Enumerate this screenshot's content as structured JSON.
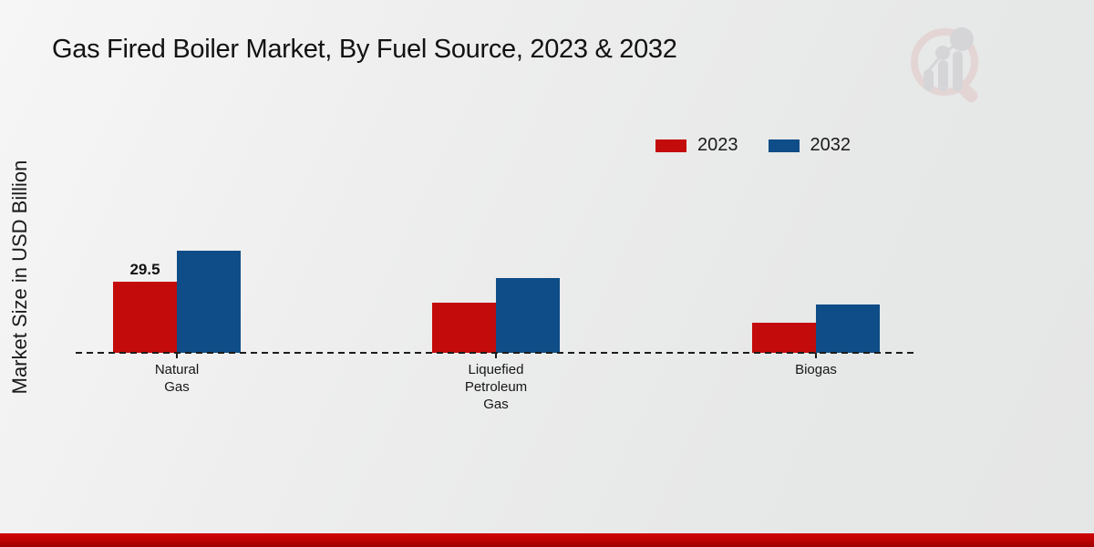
{
  "page": {
    "title": "Gas Fired Boiler Market, By Fuel Source, 2023 & 2032",
    "watermark_name": "market-research-future-logo"
  },
  "colors": {
    "series_2023": "#c40b0b",
    "series_2032": "#0e4d87",
    "text": "#1a1a1a",
    "baseline": "#1c1c1c",
    "bottom_strip": "#c00303",
    "background": "#ebebeb",
    "watermark_ring": "#e2c6c6",
    "watermark_bars": "#c7c7cc"
  },
  "chart_data": {
    "type": "bar",
    "title": "Gas Fired Boiler Market, By Fuel Source, 2023 & 2032",
    "xlabel": "",
    "ylabel": "Market Size in USD Billion",
    "ylim": [
      0,
      45
    ],
    "grid": false,
    "legend_position": "top-right",
    "baseline_style": "dashed",
    "categories": [
      {
        "label": "Natural Gas",
        "lines": [
          "Natural",
          "Gas"
        ],
        "id": "natural-gas"
      },
      {
        "label": "Liquefied Petroleum Gas",
        "lines": [
          "Liquefied",
          "Petroleum",
          "Gas"
        ],
        "id": "liquefied-petroleum-gas"
      },
      {
        "label": "Biogas",
        "lines": [
          "Biogas"
        ],
        "id": "biogas"
      }
    ],
    "series": [
      {
        "name": "2023",
        "color": "#c40b0b",
        "values": [
          29.5,
          20.8,
          12.5
        ],
        "shown_labels": [
          "29.5",
          "",
          ""
        ]
      },
      {
        "name": "2032",
        "color": "#0e4d87",
        "values": [
          42.4,
          31.0,
          20.0
        ],
        "shown_labels": [
          "",
          "",
          ""
        ]
      }
    ],
    "annotations": [
      "Only the 2023 Natural Gas bar has a printed value: 29.5"
    ]
  }
}
